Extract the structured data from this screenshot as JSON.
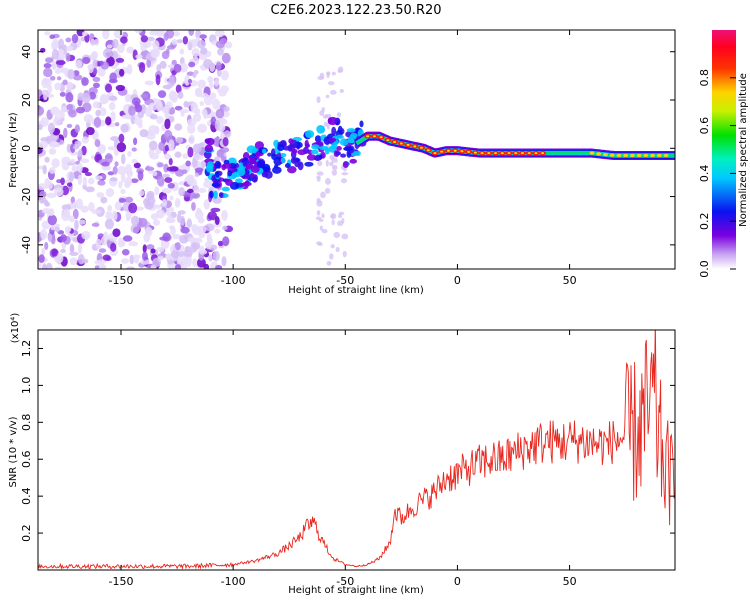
{
  "title": "C2E6.2023.122.23.50.R20",
  "chart_data": [
    {
      "type": "heatmap",
      "xlabel": "Height of straight line (km)",
      "ylabel": "Frequency (Hz)",
      "xlim": [
        -187,
        97
      ],
      "ylim": [
        -50,
        49
      ],
      "xticks": [
        -150,
        -100,
        -50,
        0,
        50
      ],
      "xtick_labels": [
        "-150",
        "-100",
        "-50",
        "0",
        "50"
      ],
      "yticks": [
        -40,
        -20,
        0,
        20,
        40
      ],
      "ytick_labels": [
        "-40",
        "-20",
        "0",
        "20",
        "40"
      ],
      "colorbar": {
        "label": "Normalized spectral amplitude",
        "range": [
          0,
          1
        ],
        "ticks": [
          0.0,
          0.2,
          0.4,
          0.6,
          0.8
        ],
        "tick_labels": [
          "0.0",
          "0.2",
          "0.4",
          "0.6",
          "0.8"
        ],
        "colormap": "rainbow (white-violet-blue-cyan-green-yellow-red-magenta)"
      },
      "ridge": {
        "x": [
          -110,
          -100,
          -90,
          -80,
          -70,
          -60,
          -55,
          -50,
          -45,
          -40,
          -35,
          -30,
          -25,
          -20,
          -15,
          -10,
          -5,
          0,
          10,
          20,
          30,
          40,
          50,
          60,
          70,
          80,
          90
        ],
        "y": [
          -14,
          -12,
          -6,
          -4,
          -2,
          2,
          6,
          0,
          2,
          5,
          5,
          3,
          2,
          1,
          0,
          -2,
          -1,
          -1,
          -2,
          -2,
          -2,
          -2,
          -2,
          -2,
          -3,
          -3,
          -3
        ]
      }
    },
    {
      "type": "line",
      "xlabel": "Height of straight line (km)",
      "ylabel": "SNR (10 * v/v)",
      "y_multiplier": "(x10⁴)",
      "xlim": [
        -187,
        97
      ],
      "ylim": [
        0,
        1.3
      ],
      "xticks": [
        -150,
        -100,
        -50,
        0,
        50
      ],
      "xtick_labels": [
        "-150",
        "-100",
        "-50",
        "0",
        "50"
      ],
      "yticks": [
        0.2,
        0.4,
        0.6,
        0.8,
        1.0,
        1.2
      ],
      "ytick_labels": [
        "0.2",
        "0.4",
        "0.6",
        "0.8",
        "1.0",
        "1.2"
      ],
      "series": [
        {
          "color": "#e8271f",
          "x": [
            -187,
            -160,
            -140,
            -120,
            -100,
            -90,
            -80,
            -75,
            -70,
            -67,
            -64,
            -62,
            -58,
            -55,
            -50,
            -45,
            -40,
            -35,
            -30,
            -28,
            -25,
            -20,
            -15,
            -10,
            -5,
            0,
            5,
            10,
            15,
            20,
            25,
            30,
            35,
            40,
            45,
            50,
            55,
            60,
            65,
            70,
            75,
            80,
            83,
            85,
            88,
            90,
            93,
            97
          ],
          "y": [
            0.02,
            0.02,
            0.02,
            0.02,
            0.03,
            0.05,
            0.09,
            0.13,
            0.18,
            0.24,
            0.26,
            0.2,
            0.11,
            0.06,
            0.03,
            0.02,
            0.03,
            0.06,
            0.15,
            0.32,
            0.28,
            0.34,
            0.38,
            0.42,
            0.5,
            0.52,
            0.55,
            0.58,
            0.6,
            0.6,
            0.63,
            0.66,
            0.68,
            0.7,
            0.69,
            0.7,
            0.7,
            0.69,
            0.68,
            0.7,
            0.72,
            0.75,
            0.8,
            0.85,
            0.9,
            0.7,
            0.55,
            0.45
          ]
        }
      ]
    }
  ]
}
